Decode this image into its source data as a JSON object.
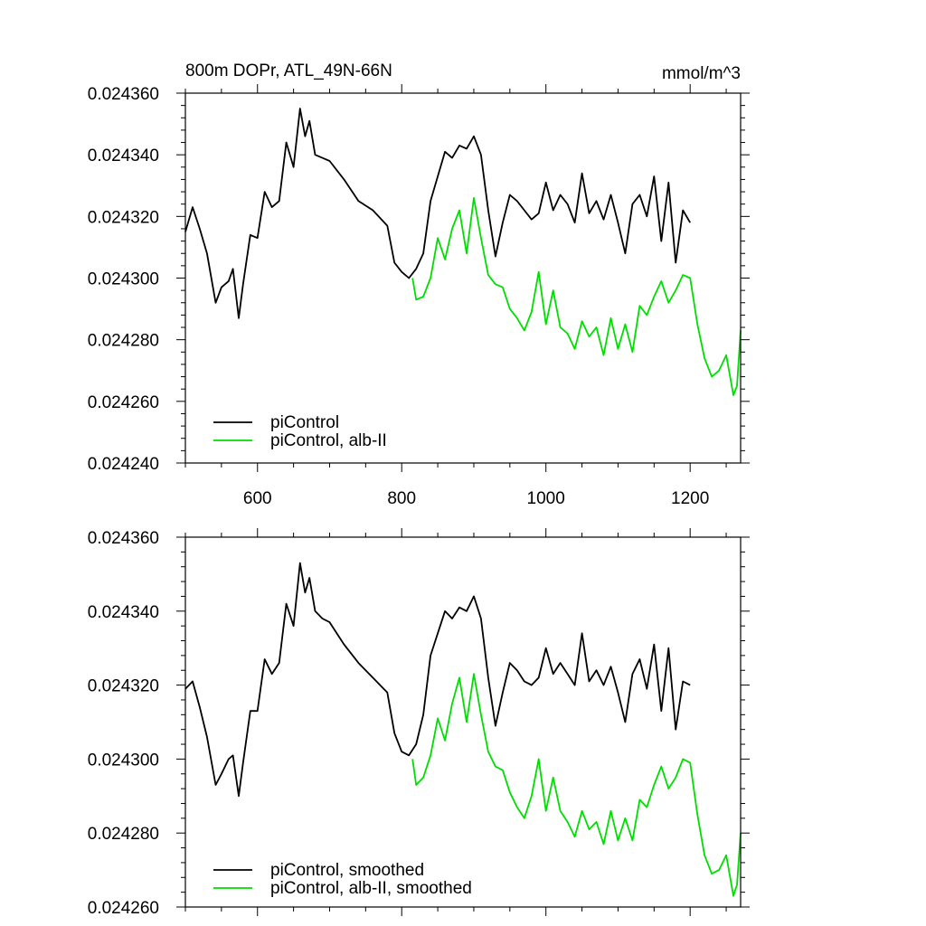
{
  "chart_data": [
    {
      "type": "line",
      "title": "800m DOPr, ATL_49N-66N",
      "units": "mmol/m^3",
      "xlim": [
        500,
        1270
      ],
      "ylim": [
        0.02424,
        0.02436
      ],
      "x_ticks": [
        600,
        800,
        1000,
        1200
      ],
      "x_tick_labels": [
        "600",
        "800",
        "1000",
        "1200"
      ],
      "y_ticks": [
        0.02424,
        0.02426,
        0.02428,
        0.0243,
        0.02432,
        0.02434,
        0.02436
      ],
      "y_tick_labels": [
        "0.024240",
        "0.024260",
        "0.024280",
        "0.024300",
        "0.024320",
        "0.024340",
        "0.024360"
      ],
      "legend_position": "bottom-left",
      "series": [
        {
          "name": "piControl",
          "color": "#000000",
          "x": [
            500,
            510,
            520,
            530,
            542,
            550,
            560,
            566,
            574,
            580,
            590,
            600,
            610,
            620,
            630,
            640,
            650,
            659,
            666,
            672,
            680,
            690,
            700,
            720,
            740,
            760,
            780,
            790,
            800,
            810,
            820,
            830,
            840,
            850,
            860,
            870,
            880,
            890,
            900,
            910,
            920,
            930,
            940,
            950,
            960,
            970,
            980,
            990,
            1000,
            1010,
            1020,
            1030,
            1040,
            1050,
            1060,
            1070,
            1080,
            1090,
            1100,
            1110,
            1120,
            1130,
            1140,
            1150,
            1160,
            1170,
            1180,
            1190,
            1200
          ],
          "y": [
            0.024315,
            0.024323,
            0.024316,
            0.024308,
            0.024292,
            0.024297,
            0.024299,
            0.024303,
            0.024287,
            0.024298,
            0.024314,
            0.024313,
            0.024328,
            0.024323,
            0.024325,
            0.024344,
            0.024336,
            0.024355,
            0.024346,
            0.024351,
            0.02434,
            0.024339,
            0.024338,
            0.024332,
            0.024325,
            0.024322,
            0.024317,
            0.024305,
            0.024302,
            0.0243,
            0.024303,
            0.024308,
            0.024325,
            0.024333,
            0.024341,
            0.024339,
            0.024343,
            0.024342,
            0.024346,
            0.02434,
            0.024322,
            0.024307,
            0.024318,
            0.024327,
            0.024325,
            0.024322,
            0.024319,
            0.024321,
            0.024331,
            0.024322,
            0.024327,
            0.024324,
            0.024318,
            0.024334,
            0.024321,
            0.024325,
            0.024319,
            0.024327,
            0.024318,
            0.024308,
            0.024324,
            0.024327,
            0.02432,
            0.024333,
            0.024312,
            0.024331,
            0.024305,
            0.024322,
            0.024318
          ]
        },
        {
          "name": "piControl, alb-II",
          "color": "#00dd00",
          "x": [
            815,
            820,
            830,
            840,
            850,
            860,
            870,
            880,
            890,
            900,
            910,
            920,
            930,
            940,
            950,
            960,
            970,
            980,
            990,
            1000,
            1010,
            1020,
            1030,
            1040,
            1050,
            1060,
            1070,
            1080,
            1090,
            1100,
            1110,
            1120,
            1130,
            1140,
            1150,
            1160,
            1170,
            1180,
            1190,
            1200,
            1210,
            1220,
            1230,
            1240,
            1250,
            1260,
            1265,
            1270
          ],
          "y": [
            0.0243,
            0.024293,
            0.024294,
            0.0243,
            0.024313,
            0.024306,
            0.024316,
            0.024322,
            0.024308,
            0.024326,
            0.024313,
            0.024301,
            0.024298,
            0.024297,
            0.02429,
            0.024287,
            0.024283,
            0.024289,
            0.024302,
            0.024285,
            0.024296,
            0.024284,
            0.024282,
            0.024277,
            0.024286,
            0.024281,
            0.024284,
            0.024275,
            0.024287,
            0.024277,
            0.024285,
            0.024276,
            0.024291,
            0.024288,
            0.024294,
            0.024299,
            0.024292,
            0.024296,
            0.024301,
            0.0243,
            0.024285,
            0.024274,
            0.024268,
            0.02427,
            0.024275,
            0.024262,
            0.024265,
            0.024283
          ]
        }
      ]
    },
    {
      "type": "line",
      "title": "",
      "units": "",
      "xlim": [
        500,
        1270
      ],
      "ylim": [
        0.02426,
        0.02436
      ],
      "x_ticks": [
        600,
        800,
        1000,
        1200
      ],
      "x_tick_labels": [],
      "y_ticks": [
        0.02426,
        0.02428,
        0.0243,
        0.02432,
        0.02434,
        0.02436
      ],
      "y_tick_labels": [
        "0.024260",
        "0.024280",
        "0.024300",
        "0.024320",
        "0.024340",
        "0.024360"
      ],
      "legend_position": "bottom-left",
      "series": [
        {
          "name": "piControl, smoothed",
          "color": "#000000",
          "x": [
            500,
            510,
            520,
            530,
            542,
            550,
            560,
            566,
            574,
            580,
            590,
            600,
            610,
            620,
            630,
            640,
            650,
            659,
            666,
            672,
            680,
            690,
            700,
            720,
            740,
            760,
            780,
            790,
            800,
            810,
            820,
            830,
            840,
            850,
            860,
            870,
            880,
            890,
            900,
            910,
            920,
            930,
            940,
            950,
            960,
            970,
            980,
            990,
            1000,
            1010,
            1020,
            1030,
            1040,
            1050,
            1060,
            1070,
            1080,
            1090,
            1100,
            1110,
            1120,
            1130,
            1140,
            1150,
            1160,
            1170,
            1180,
            1190,
            1200
          ],
          "y": [
            0.024319,
            0.024321,
            0.024314,
            0.024306,
            0.024293,
            0.024296,
            0.0243,
            0.024301,
            0.02429,
            0.024299,
            0.024313,
            0.024313,
            0.024327,
            0.024323,
            0.024326,
            0.024342,
            0.024336,
            0.024353,
            0.024345,
            0.024349,
            0.02434,
            0.024338,
            0.024337,
            0.024331,
            0.024326,
            0.024322,
            0.024318,
            0.024307,
            0.024302,
            0.024301,
            0.024304,
            0.024312,
            0.024328,
            0.024334,
            0.02434,
            0.024338,
            0.024341,
            0.02434,
            0.024344,
            0.024338,
            0.024322,
            0.024309,
            0.024318,
            0.024326,
            0.024324,
            0.024321,
            0.02432,
            0.024322,
            0.02433,
            0.024323,
            0.024326,
            0.024323,
            0.02432,
            0.024334,
            0.024321,
            0.024324,
            0.02432,
            0.024325,
            0.024318,
            0.02431,
            0.024323,
            0.024327,
            0.024319,
            0.024331,
            0.024313,
            0.02433,
            0.024308,
            0.024321,
            0.02432
          ]
        },
        {
          "name": "piControl, alb-II, smoothed",
          "color": "#00dd00",
          "x": [
            815,
            820,
            830,
            840,
            850,
            860,
            870,
            880,
            890,
            900,
            910,
            920,
            930,
            940,
            950,
            960,
            970,
            980,
            990,
            1000,
            1010,
            1020,
            1030,
            1040,
            1050,
            1060,
            1070,
            1080,
            1090,
            1100,
            1110,
            1120,
            1130,
            1140,
            1150,
            1160,
            1170,
            1180,
            1190,
            1200,
            1210,
            1220,
            1230,
            1240,
            1250,
            1260,
            1265,
            1270
          ],
          "y": [
            0.0243,
            0.024293,
            0.024295,
            0.024301,
            0.024311,
            0.024305,
            0.024315,
            0.024322,
            0.02431,
            0.024323,
            0.024312,
            0.024302,
            0.024298,
            0.024297,
            0.024291,
            0.024287,
            0.024284,
            0.02429,
            0.0243,
            0.024286,
            0.024295,
            0.024286,
            0.024283,
            0.024279,
            0.024286,
            0.024281,
            0.024283,
            0.024277,
            0.024286,
            0.024278,
            0.024284,
            0.024278,
            0.024289,
            0.024287,
            0.024293,
            0.024298,
            0.024292,
            0.024295,
            0.0243,
            0.024299,
            0.024285,
            0.024274,
            0.024269,
            0.02427,
            0.024274,
            0.024263,
            0.024266,
            0.02428
          ]
        }
      ]
    }
  ]
}
